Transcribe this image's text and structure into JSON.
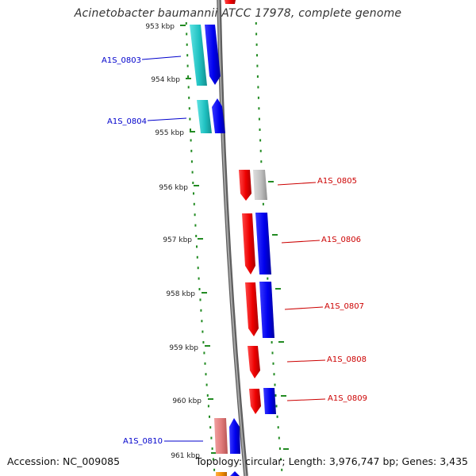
{
  "title": "Acinetobacter baumannii ATCC 17978, complete genome",
  "footer": {
    "accession": "Accession: NC_009085",
    "topology": "Topology: circular; Length: 3,976,747 bp; Genes: 3,435"
  },
  "scale_labels": [
    {
      "label": "953 kbp"
    },
    {
      "label": "954 kbp"
    },
    {
      "label": "955 kbp"
    },
    {
      "label": "956 kbp"
    },
    {
      "label": "957 kbp"
    },
    {
      "label": "958 kbp"
    },
    {
      "label": "959 kbp"
    },
    {
      "label": "960 kbp"
    },
    {
      "label": "961 kbp"
    }
  ],
  "gene_labels": [
    {
      "label": "A1S_0803",
      "strand": "minus",
      "color": "#0000cc"
    },
    {
      "label": "A1S_0804",
      "strand": "minus",
      "color": "#0000cc"
    },
    {
      "label": "A1S_0805",
      "strand": "plus",
      "color": "#cc0000"
    },
    {
      "label": "A1S_0806",
      "strand": "plus",
      "color": "#cc0000"
    },
    {
      "label": "A1S_0807",
      "strand": "plus",
      "color": "#cc0000"
    },
    {
      "label": "A1S_0808",
      "strand": "plus",
      "color": "#cc0000"
    },
    {
      "label": "A1S_0809",
      "strand": "plus",
      "color": "#cc0000"
    },
    {
      "label": "A1S_0810",
      "strand": "minus",
      "color": "#0000cc"
    }
  ],
  "colors": {
    "backbone": "#808080",
    "tick": "#228b22",
    "cds_red": "#ee0000",
    "cds_blue": "#0000ee",
    "cds_cyan": "#22c4c4",
    "cds_gray": "#bbbbbb",
    "cds_pink": "#e88080",
    "cds_orange": "#f08a00"
  }
}
